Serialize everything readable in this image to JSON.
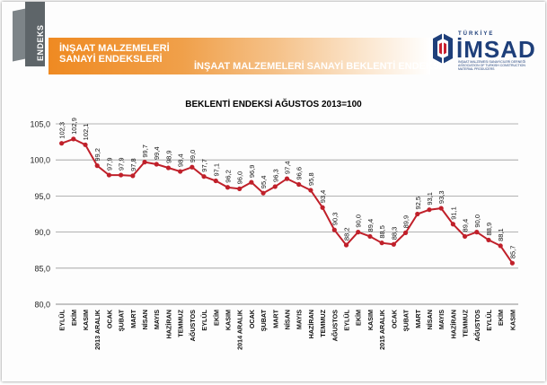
{
  "header": {
    "logo_word": "ENDEKS",
    "title_line1": "İNŞAAT MALZEMELERİ",
    "title_line2": "SANAYİ ENDEKSLERİ",
    "subtitle": "İNŞAAT MALZEMELERİ SANAYİ BEKLENTİ ENDEKSİ",
    "brand_top": "TÜRKİYE",
    "brand_name": "İMSAD",
    "brand_sub": "İNŞAAT MALZEMESİ SANAYİCİLERİ DERNEĞİ ASSOCIATION OF TURKISH CONSTRUCTION MATERIAL PRODUCERS"
  },
  "colors": {
    "accent": "#ef8a22",
    "brand": "#1e3f7a",
    "brand_red": "#c8202f",
    "series": "#c0202a"
  },
  "chart_data": {
    "type": "line",
    "title": "BEKLENTİ ENDEKSİ AĞUSTOS 2013=100",
    "xlabel": "",
    "ylabel": "",
    "ylim": [
      80,
      105
    ],
    "yticks": [
      80,
      85,
      90,
      95,
      100,
      105
    ],
    "ytick_labels": [
      "80,0",
      "85,0",
      "90,0",
      "95,0",
      "100,0",
      "105,0"
    ],
    "grid": true,
    "categories": [
      "EYLÜL",
      "EKİM",
      "KASIM",
      "2013 ARALIK",
      "OCAK",
      "ŞUBAT",
      "MART",
      "NİSAN",
      "MAYIS",
      "HAZİRAN",
      "TEMMUZ",
      "AĞUSTOS",
      "EYLÜL",
      "EKİM",
      "KASIM",
      "2014 ARALIK",
      "OCAK",
      "ŞUBAT",
      "MART",
      "NİSAN",
      "MAYIS",
      "HAZİRAN",
      "TEMMUZ",
      "AĞUSTOS",
      "EYLÜL",
      "EKİM",
      "KASIM",
      "2015 ARALIK",
      "OCAK",
      "ŞUBAT",
      "MART",
      "NİSAN",
      "MAYIS",
      "HAZİRAN",
      "TEMMUZ",
      "AĞUSTOS",
      "EYLÜL",
      "EKİM",
      "KASIM"
    ],
    "series": [
      {
        "name": "Beklenti Endeksi",
        "values": [
          102.3,
          102.9,
          102.1,
          99.2,
          97.9,
          97.9,
          97.8,
          99.7,
          99.4,
          98.9,
          98.4,
          99.0,
          97.7,
          97.1,
          96.2,
          96.0,
          96.9,
          95.4,
          96.3,
          97.4,
          96.6,
          95.8,
          93.4,
          90.3,
          88.2,
          90.0,
          89.4,
          88.5,
          88.3,
          89.9,
          92.5,
          93.1,
          93.3,
          91.1,
          89.4,
          90.0,
          88.9,
          88.1,
          85.7
        ],
        "labels": [
          "102,3",
          "102,9",
          "102,1",
          "99,2",
          "97,9",
          "97,9",
          "97,8",
          "99,7",
          "99,4",
          "98,9",
          "98,4",
          "99,0",
          "97,7",
          "97,1",
          "96,2",
          "96,0",
          "96,9",
          "95,4",
          "96,3",
          "97,4",
          "96,6",
          "95,8",
          "93,4",
          "90,3",
          "88,2",
          "90,0",
          "89,4",
          "88,5",
          "88,3",
          "89,9",
          "92,5",
          "93,1",
          "93,3",
          "91,1",
          "89,4",
          "90,0",
          "88,9",
          "88,1",
          "85,7"
        ]
      }
    ]
  }
}
